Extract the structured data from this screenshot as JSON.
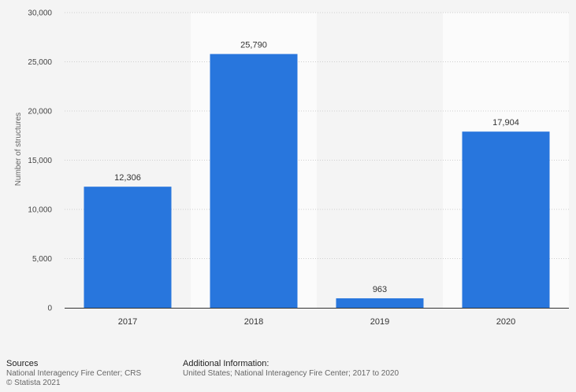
{
  "chart_data": {
    "type": "bar",
    "categories": [
      "2017",
      "2018",
      "2019",
      "2020"
    ],
    "values": [
      12306,
      25790,
      963,
      17904
    ],
    "value_labels": [
      "12,306",
      "25,790",
      "963",
      "17,904"
    ],
    "ylabel": "Number of structures",
    "ylim": [
      0,
      30000
    ],
    "yticks": [
      0,
      5000,
      10000,
      15000,
      20000,
      25000,
      30000
    ],
    "ytick_labels": [
      "0",
      "5,000",
      "10,000",
      "15,000",
      "20,000",
      "25,000",
      "30,000"
    ],
    "grid": true,
    "bar_color": "#2876dd"
  },
  "footer": {
    "sources_heading": "Sources",
    "sources_text": "National Interagency Fire Center; CRS",
    "copyright": "© Statista 2021",
    "additional_heading": "Additional Information:",
    "additional_text": "United States; National Interagency Fire Center; 2017 to 2020"
  }
}
